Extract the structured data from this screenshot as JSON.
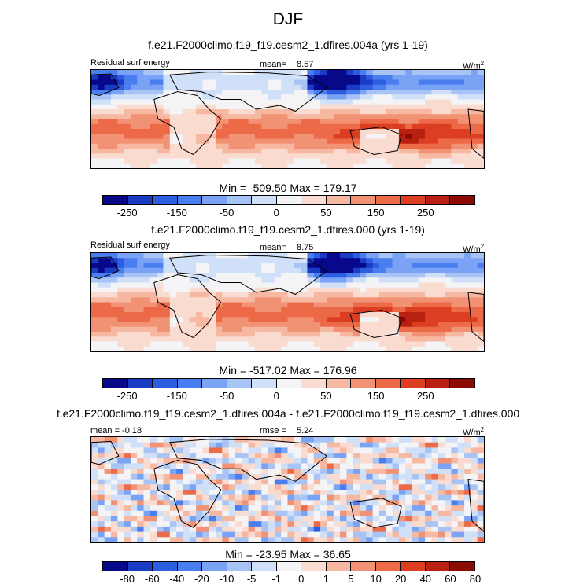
{
  "season": "DJF",
  "units": "W/m",
  "units_exp": "2",
  "panels": [
    {
      "title": "f.e21.F2000climo.f19_f19.cesm2_1.dfires.004a (yrs 1-19)",
      "left_label": "Residual surf energy",
      "stat_label": "mean=",
      "stat_value": "8.57",
      "minmax": "Min = -509.50 Max = 179.17",
      "colorbar": "abs"
    },
    {
      "title": "f.e21.F2000climo.f19_f19.cesm2_1.dfires.000 (yrs 1-19)",
      "left_label": "Residual surf energy",
      "stat_label": "mean=",
      "stat_value": "8.75",
      "minmax": "Min = -517.02 Max = 176.96",
      "colorbar": "abs"
    },
    {
      "title": "f.e21.F2000climo.f19_f19.cesm2_1.dfires.004a - f.e21.F2000climo.f19_f19.cesm2_1.dfires.000",
      "left_label": "mean =  -0.18",
      "stat_label": "rmse =",
      "stat_value": "5.24",
      "minmax": "Min = -23.95 Max =  36.65",
      "colorbar": "diff"
    }
  ],
  "chart_data": [
    {
      "type": "heatmap",
      "title": "f.e21.F2000climo.f19_f19.cesm2_1.dfires.004a (yrs 1-19)",
      "variable": "Residual surf energy",
      "units": "W/m2",
      "mean": 8.57,
      "min": -509.5,
      "max": 179.17,
      "colorbar_levels": [
        -300,
        -250,
        -200,
        -150,
        -100,
        -50,
        -25,
        0,
        25,
        50,
        100,
        150,
        200,
        250,
        300
      ],
      "colorbar_tick_labels": [
        "-250",
        "-150",
        "-50",
        "0",
        "50",
        "150",
        "250"
      ]
    },
    {
      "type": "heatmap",
      "title": "f.e21.F2000climo.f19_f19.cesm2_1.dfires.000 (yrs 1-19)",
      "variable": "Residual surf energy",
      "units": "W/m2",
      "mean": 8.75,
      "min": -517.02,
      "max": 176.96,
      "colorbar_levels": [
        -300,
        -250,
        -200,
        -150,
        -100,
        -50,
        -25,
        0,
        25,
        50,
        100,
        150,
        200,
        250,
        300
      ],
      "colorbar_tick_labels": [
        "-250",
        "-150",
        "-50",
        "0",
        "50",
        "150",
        "250"
      ]
    },
    {
      "type": "heatmap",
      "title": "f.e21.F2000climo.f19_f19.cesm2_1.dfires.004a - f.e21.F2000climo.f19_f19.cesm2_1.dfires.000",
      "units": "W/m2",
      "mean": -0.18,
      "rmse": 5.24,
      "min": -23.95,
      "max": 36.65,
      "colorbar_levels": [
        -80,
        -60,
        -40,
        -20,
        -10,
        -5,
        -1,
        0,
        1,
        5,
        10,
        20,
        40,
        60,
        80
      ],
      "colorbar_tick_labels": [
        "-80",
        "-60",
        "-40",
        "-20",
        "-10",
        "-5",
        "-1",
        "0",
        "1",
        "5",
        "10",
        "20",
        "40",
        "60",
        "80"
      ]
    }
  ],
  "colors": {
    "scale": [
      "#08088a",
      "#1a3cc4",
      "#2e5ee0",
      "#4a7ef0",
      "#7aa2f5",
      "#a8c4f5",
      "#d0e0f8",
      "#f4f4f6",
      "#fadbd0",
      "#f7b8a2",
      "#f29274",
      "#ec6a48",
      "#dc3e22",
      "#b82012",
      "#8a0a04"
    ],
    "coast": "#000000"
  }
}
